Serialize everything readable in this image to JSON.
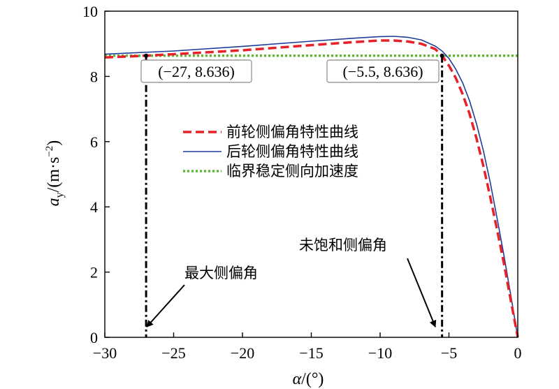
{
  "chart_data": {
    "type": "line",
    "xlabel_symbol": "α",
    "xlabel_unit": "/(°)",
    "ylabel_symbol": "a",
    "ylabel_sub": "y",
    "ylabel_unit": "/(m·s",
    "ylabel_sup": "−2",
    "ylabel_close": ")",
    "xlim": [
      -30,
      0
    ],
    "ylim": [
      0,
      10
    ],
    "xticks": [
      -30,
      -25,
      -20,
      -15,
      -10,
      -5,
      0
    ],
    "xtick_labels": [
      "−30",
      "−25",
      "−20",
      "−15",
      "−10",
      "−5",
      "0"
    ],
    "yticks": [
      0,
      2,
      4,
      6,
      8,
      10
    ],
    "ytick_labels": [
      "0",
      "2",
      "4",
      "6",
      "8",
      "10"
    ],
    "series": [
      {
        "name": "前轮侧偏角特性曲线",
        "color": "#e8202a",
        "style": "dashed",
        "x": [
          -30,
          -27,
          -25,
          -20,
          -15,
          -12,
          -10,
          -9,
          -8,
          -7,
          -6,
          -5.5,
          -5,
          -4.5,
          -4,
          -3.5,
          -3,
          -2.5,
          -2,
          -1.5,
          -1,
          -0.5,
          0
        ],
        "y": [
          8.58,
          8.636,
          8.68,
          8.8,
          8.96,
          9.05,
          9.1,
          9.1,
          9.07,
          9.0,
          8.84,
          8.636,
          8.33,
          7.95,
          7.45,
          6.85,
          6.1,
          5.25,
          4.3,
          3.3,
          2.25,
          1.12,
          0
        ]
      },
      {
        "name": "后轮侧偏角特性曲线",
        "color": "#1f3c99",
        "style": "solid",
        "x": [
          -30,
          -25,
          -20,
          -15,
          -12,
          -10,
          -9,
          -8,
          -7,
          -6,
          -5.5,
          -5,
          -4.5,
          -4,
          -3.5,
          -3,
          -2.5,
          -2,
          -1.5,
          -1,
          -0.5,
          0
        ],
        "y": [
          8.68,
          8.78,
          8.92,
          9.08,
          9.17,
          9.22,
          9.23,
          9.2,
          9.12,
          8.93,
          8.78,
          8.55,
          8.22,
          7.8,
          7.25,
          6.55,
          5.72,
          4.75,
          3.65,
          2.5,
          1.28,
          0
        ]
      },
      {
        "name": "临界稳定侧向加速度",
        "color": "#5cb82e",
        "style": "dotted",
        "x": [
          -30,
          0
        ],
        "y": [
          8.636,
          8.636
        ]
      }
    ],
    "vlines": [
      {
        "x": -27,
        "y_top": 8.636,
        "label": "(−27, 8.636)"
      },
      {
        "x": -5.5,
        "y_top": 8.636,
        "label": "(−5.5, 8.636)"
      }
    ],
    "annotations": [
      {
        "text": "最大侧偏角",
        "arrow_to_x": -27,
        "arrow_to_y": 0.15
      },
      {
        "text": "未饱和侧偏角",
        "arrow_to_x": -5.5,
        "arrow_to_y": 0.15
      }
    ],
    "legend_placement": "center",
    "grid": false
  }
}
